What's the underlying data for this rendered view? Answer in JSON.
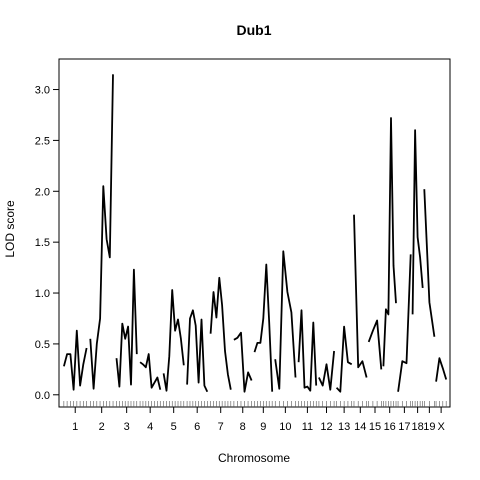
{
  "chart_data": {
    "type": "line",
    "title": "Dub1",
    "xlabel": "Chromosome",
    "ylabel": "LOD score",
    "ylim": [
      -0.12,
      3.3
    ],
    "yticks": [
      "0.0",
      "0.5",
      "1.0",
      "1.5",
      "2.0",
      "2.5",
      "3.0"
    ],
    "line_color": "#000000",
    "chromosomes": [
      {
        "name": "1",
        "x0": 0,
        "x1": 9,
        "lod": [
          0.28,
          0.4,
          0.4,
          0.05,
          0.63,
          0.09,
          0.3,
          0.46
        ]
      },
      {
        "name": "2",
        "x0": 9,
        "x1": 18,
        "lod": [
          0.55,
          0.06,
          0.5,
          0.75,
          2.05,
          1.53,
          1.35,
          3.15
        ]
      },
      {
        "name": "3",
        "x0": 18,
        "x1": 26,
        "lod": [
          0.36,
          0.08,
          0.7,
          0.55,
          0.67,
          0.1,
          1.23,
          0.4
        ]
      },
      {
        "name": "4",
        "x0": 26,
        "x1": 34,
        "lod": [
          0.32,
          0.3,
          0.27,
          0.4,
          0.07,
          0.12,
          0.17,
          0.05
        ]
      },
      {
        "name": "5",
        "x0": 34,
        "x1": 42,
        "lod": [
          0.21,
          0.04,
          0.38,
          1.03,
          0.63,
          0.74,
          0.55,
          0.29
        ]
      },
      {
        "name": "6",
        "x0": 42,
        "x1": 50,
        "lod": [
          0.1,
          0.75,
          0.83,
          0.68,
          0.12,
          0.74,
          0.09,
          0.03
        ]
      },
      {
        "name": "7",
        "x0": 50,
        "x1": 58,
        "lod": [
          0.6,
          1.01,
          0.76,
          1.15,
          0.88,
          0.43,
          0.2,
          0.05
        ]
      },
      {
        "name": "8",
        "x0": 58,
        "x1": 65,
        "lod": [
          0.54,
          0.56,
          0.61,
          0.03,
          0.22,
          0.14
        ]
      },
      {
        "name": "9",
        "x0": 65,
        "x1": 72,
        "lod": [
          0.42,
          0.51,
          0.51,
          0.75,
          1.28,
          0.71,
          0.03
        ]
      },
      {
        "name": "10",
        "x0": 72,
        "x1": 80,
        "lod": [
          0.35,
          0.06,
          1.41,
          1.01,
          0.81,
          0.17
        ]
      },
      {
        "name": "11",
        "x0": 80,
        "x1": 87,
        "lod": [
          0.32,
          0.83,
          0.07,
          0.08,
          0.04,
          0.71,
          0.09
        ]
      },
      {
        "name": "12",
        "x0": 87,
        "x1": 93,
        "lod": [
          0.17,
          0.09,
          0.3,
          0.05,
          0.43
        ]
      },
      {
        "name": "13",
        "x0": 93,
        "x1": 99,
        "lod": [
          0.07,
          0.03,
          0.67,
          0.32,
          0.3
        ]
      },
      {
        "name": "14",
        "x0": 99,
        "x1": 104,
        "lod": [
          1.77,
          0.27,
          0.33,
          0.17
        ]
      },
      {
        "name": "15",
        "x0": 104,
        "x1": 109,
        "lod": [
          0.52,
          0.63,
          0.73,
          0.25
        ]
      },
      {
        "name": "16",
        "x0": 109,
        "x1": 114,
        "lod": [
          0.28,
          0.84,
          0.79,
          2.72,
          1.27,
          0.9
        ]
      },
      {
        "name": "17",
        "x0": 114,
        "x1": 119,
        "lod": [
          0.03,
          0.33,
          0.31,
          1.38
        ]
      },
      {
        "name": "18",
        "x0": 119,
        "x1": 123,
        "lod": [
          0.79,
          2.6,
          1.55,
          1.35,
          1.05
        ]
      },
      {
        "name": "19",
        "x0": 123,
        "x1": 127,
        "lod": [
          2.02,
          0.91,
          0.57
        ]
      },
      {
        "name": "X",
        "x0": 127,
        "x1": 131,
        "lod": [
          0.13,
          0.36,
          0.26,
          0.15
        ]
      }
    ]
  }
}
